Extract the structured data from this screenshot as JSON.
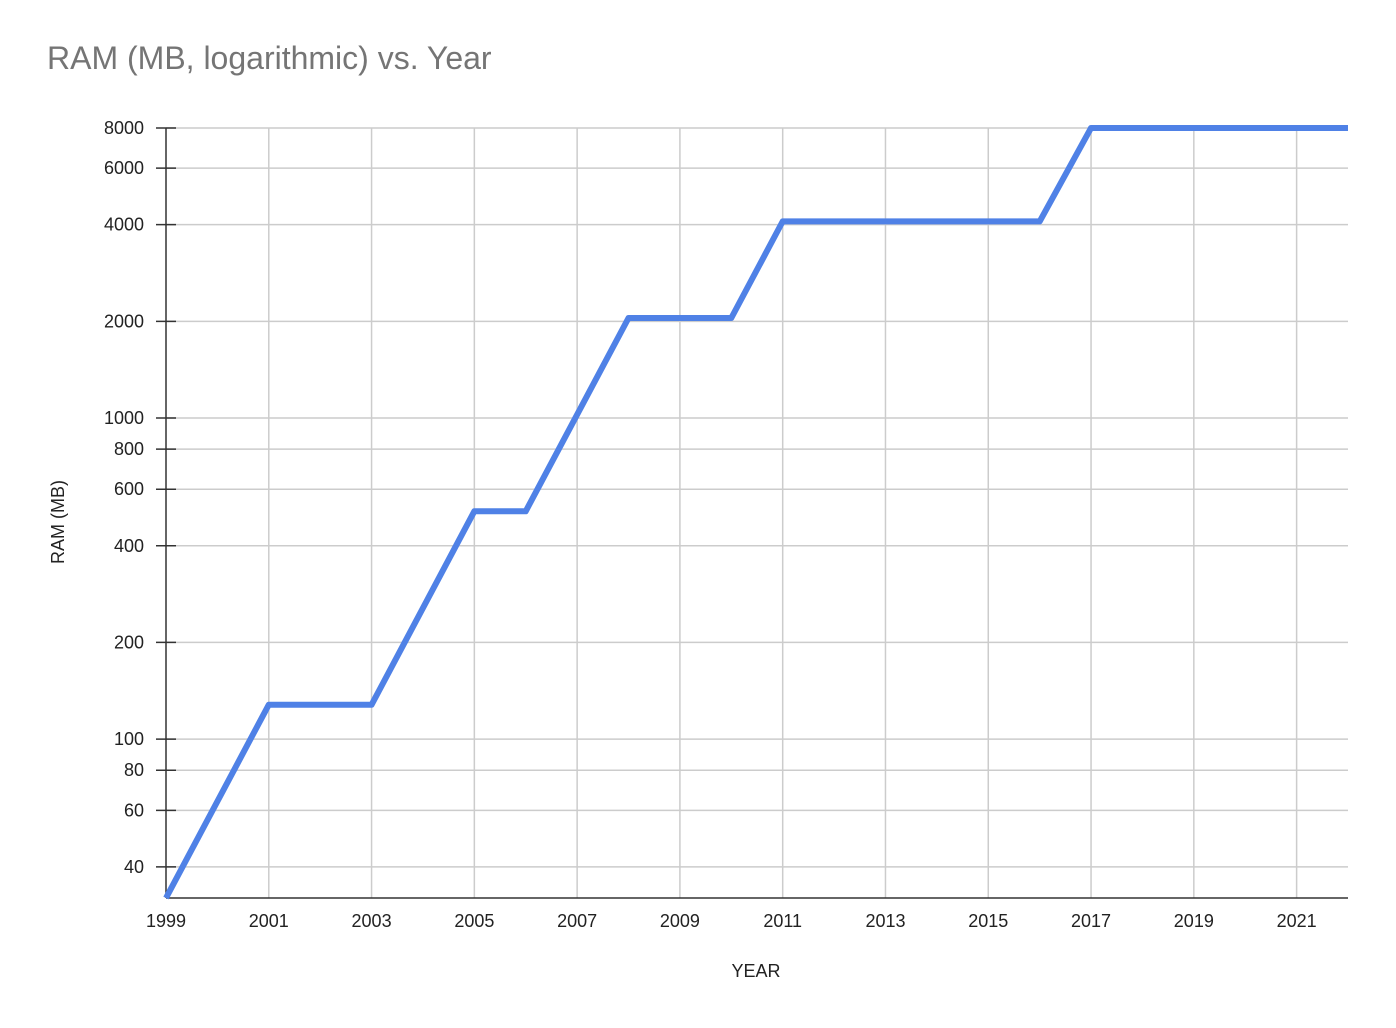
{
  "chart_data": {
    "type": "line",
    "title": "RAM (MB, logarithmic) vs. Year",
    "xlabel": "YEAR",
    "ylabel": "RAM (MB)",
    "y_scale": "log",
    "xlim": [
      1999,
      2022
    ],
    "ylim": [
      32,
      8000
    ],
    "x_ticks": [
      "1999",
      "2001",
      "2003",
      "2005",
      "2007",
      "2009",
      "2011",
      "2013",
      "2015",
      "2017",
      "2019",
      "2021"
    ],
    "y_ticks": [
      "8000",
      "6000",
      "4000",
      "2000",
      "1000",
      "800",
      "600",
      "400",
      "200",
      "100",
      "80",
      "60",
      "40"
    ],
    "grid": true,
    "legend": "none",
    "series": [
      {
        "color": "#4f81e6",
        "x": [
          1999,
          2001,
          2003,
          2005,
          2006,
          2008,
          2010,
          2011,
          2016,
          2017,
          2022
        ],
        "y": [
          32,
          128,
          128,
          512,
          512,
          2048,
          2048,
          4096,
          4096,
          8192,
          8192
        ]
      }
    ]
  }
}
